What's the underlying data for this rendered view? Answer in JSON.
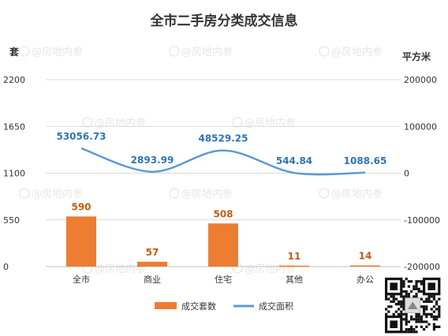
{
  "chart_data": {
    "type": "bar+line",
    "title": "全市二手房分类成交信息",
    "categories": [
      "全市",
      "商业",
      "住宅",
      "其他",
      "办公"
    ],
    "y_left_unit": "套",
    "y_right_unit": "平方米",
    "y_left_ticks": [
      "2200",
      "1650",
      "1100",
      "550",
      "0"
    ],
    "y_right_ticks": [
      "200000",
      "100000",
      "0",
      "-100000",
      "-200000"
    ],
    "y_left_range": [
      0,
      2200
    ],
    "y_right_range": [
      -200000,
      200000
    ],
    "series": [
      {
        "name": "成交套数",
        "type": "bar",
        "axis": "left",
        "color": "#ed7d31",
        "label_color": "#c55a11",
        "values": [
          590,
          57,
          508,
          11,
          14
        ],
        "labels": [
          "590",
          "57",
          "508",
          "11",
          "14"
        ]
      },
      {
        "name": "成交面积",
        "type": "line",
        "axis": "right",
        "color": "#5b9bd5",
        "label_color": "#2e75b6",
        "values": [
          53056.73,
          2893.99,
          48529.25,
          544.84,
          1088.65
        ],
        "labels": [
          "53056.73",
          "2893.99",
          "48529.25",
          "544.84",
          "1088.65"
        ]
      }
    ],
    "legend_position": "bottom",
    "grid": true,
    "watermark": "@房地内参",
    "qr_code": "qr-code"
  }
}
